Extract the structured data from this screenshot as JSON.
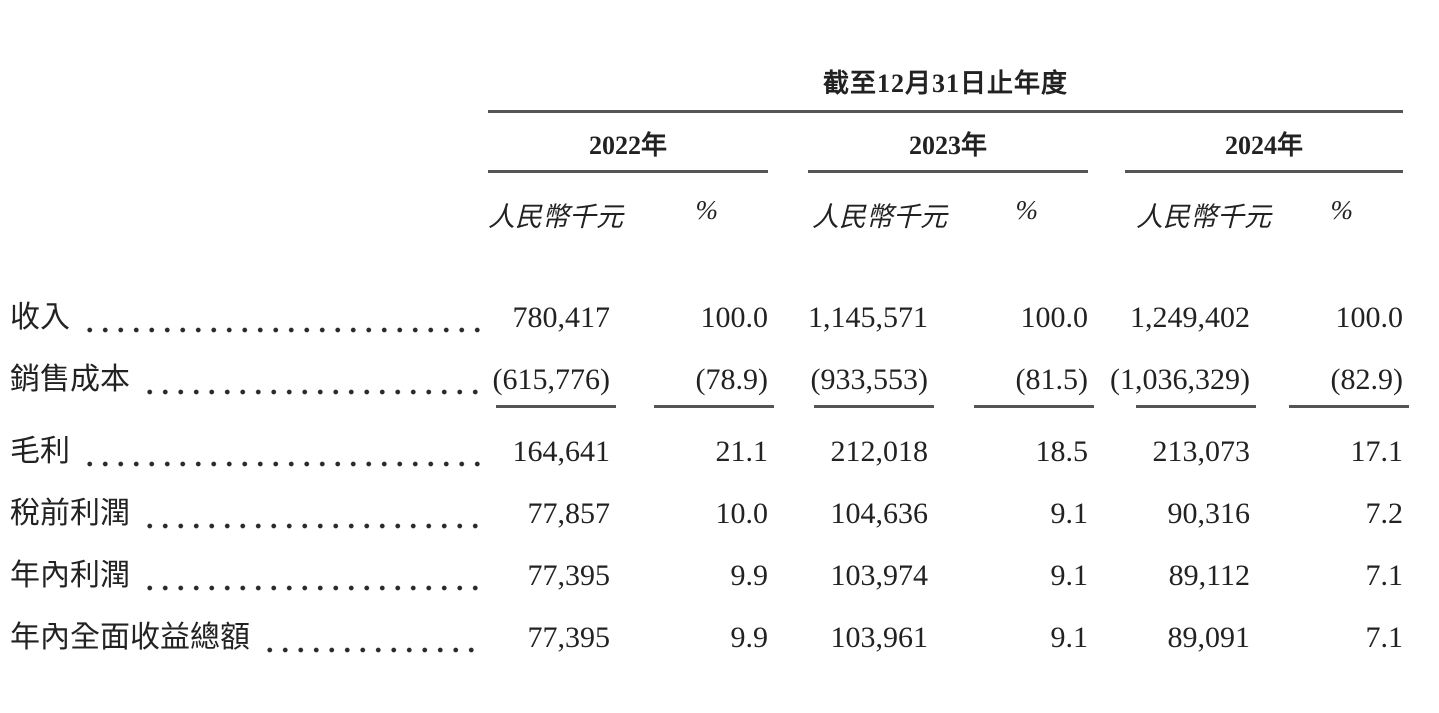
{
  "table": {
    "period_header": "截至12月31日止年度",
    "year_groups": [
      {
        "label": "2022年"
      },
      {
        "label": "2023年"
      },
      {
        "label": "2024年"
      }
    ],
    "unit_header": "人民幣千元",
    "pct_header": "%",
    "rows": [
      {
        "label": "收入",
        "values": [
          "780,417",
          "100.0",
          "1,145,571",
          "100.0",
          "1,249,402",
          "100.0"
        ]
      },
      {
        "label": "銷售成本",
        "values": [
          "(615,776)",
          "(78.9)",
          "(933,553)",
          "(81.5)",
          "(1,036,329)",
          "(82.9)"
        ]
      },
      {
        "label": "毛利",
        "values": [
          "164,641",
          "21.1",
          "212,018",
          "18.5",
          "213,073",
          "17.1"
        ]
      },
      {
        "label": "稅前利潤",
        "values": [
          "77,857",
          "10.0",
          "104,636",
          "9.1",
          "90,316",
          "7.2"
        ]
      },
      {
        "label": "年內利潤",
        "values": [
          "77,395",
          "9.9",
          "103,974",
          "9.1",
          "89,112",
          "7.1"
        ]
      },
      {
        "label": "年內全面收益總額",
        "values": [
          "77,395",
          "9.9",
          "103,961",
          "9.1",
          "89,091",
          "7.1"
        ]
      }
    ],
    "colors": {
      "text": "#222222",
      "rule": "#555555"
    }
  }
}
